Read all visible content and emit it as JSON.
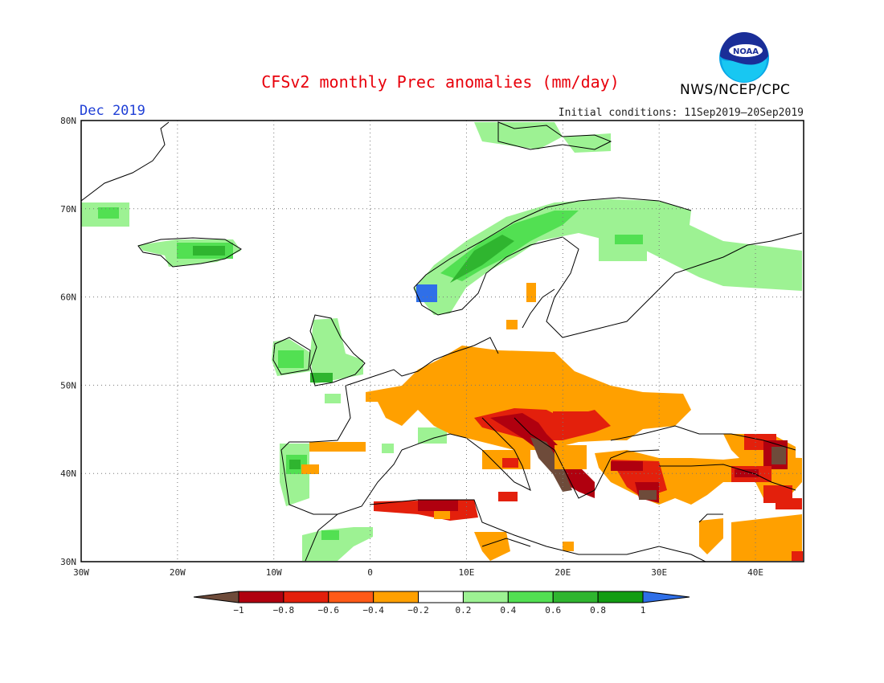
{
  "header": {
    "title": "CFSv2 monthly Prec anomalies (mm/day)",
    "month": "Dec 2019",
    "initial_conditions": "Initial conditions: 11Sep2019–20Sep2019",
    "agency": "NWS/NCEP/CPC",
    "logo_icon": "noaa-logo-icon",
    "logo_text": "NOAA"
  },
  "map": {
    "lon_labels": [
      "30W",
      "20W",
      "10W",
      "0",
      "10E",
      "20E",
      "30E",
      "40E"
    ],
    "lat_labels": [
      "80N",
      "70N",
      "60N",
      "50N",
      "40N",
      "30N"
    ],
    "lon_range": [
      -30,
      45
    ],
    "lat_range": [
      30,
      80
    ],
    "grid": "dotted"
  },
  "legend": {
    "labels": [
      "−1",
      "−0.8",
      "−0.6",
      "−0.4",
      "−0.2",
      "0.2",
      "0.4",
      "0.6",
      "0.8",
      "1"
    ],
    "colors": [
      "#6e4b3a",
      "#b0000f",
      "#e3200c",
      "#ff5a17",
      "#ffa000",
      "#ffffff",
      "#9df293",
      "#52e052",
      "#2fb52f",
      "#129c12",
      "#2f6fe8"
    ]
  },
  "anomaly_regions": [
    {
      "name": "Norway coast",
      "value": 0.5
    },
    {
      "name": "Western Norway",
      "value": 1.0
    },
    {
      "name": "Northern Scandinavia",
      "value": 0.3
    },
    {
      "name": "NW Russia",
      "value": 0.3
    },
    {
      "name": "Iceland",
      "value": 0.6
    },
    {
      "name": "Greenland",
      "value": 0.5
    },
    {
      "name": "Ireland & Scotland",
      "value": 0.5
    },
    {
      "name": "Portugal",
      "value": 0.5
    },
    {
      "name": "Morocco",
      "value": 0.3
    },
    {
      "name": "Central Europe",
      "value": -0.3
    },
    {
      "name": "Balkans",
      "value": -0.8
    },
    {
      "name": "Turkey",
      "value": -0.6
    },
    {
      "name": "Tunisia coast",
      "value": -0.6
    },
    {
      "name": "Middle East",
      "value": -0.3
    }
  ]
}
